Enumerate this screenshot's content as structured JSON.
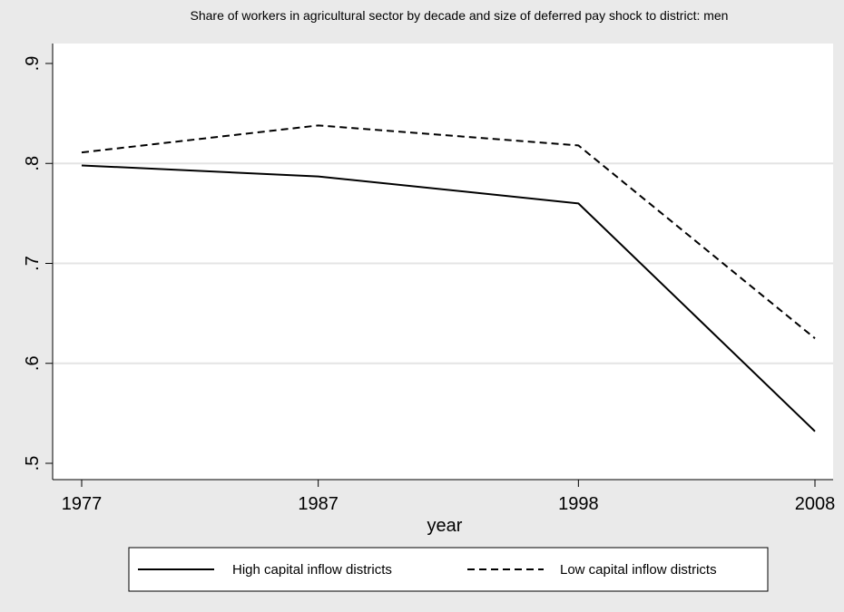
{
  "chart_data": {
    "type": "line",
    "title": "Share of workers in agricultural sector by decade and size of deferred pay shock to district: men",
    "xlabel": "year",
    "ylabel": "",
    "x": [
      1977,
      1987,
      1998,
      2008
    ],
    "x_tick_labels": [
      "1977",
      "1987",
      "1998",
      "2008"
    ],
    "ylim": [
      0.5,
      0.9
    ],
    "y_ticks": [
      0.5,
      0.6,
      0.7,
      0.8,
      0.9
    ],
    "y_tick_labels": [
      ".5",
      ".6",
      ".7",
      ".8",
      ".9"
    ],
    "grid": "horizontal",
    "legend_position": "bottom",
    "series": [
      {
        "name": "High capital inflow districts",
        "style": "solid",
        "color": "#000000",
        "values": [
          0.798,
          0.787,
          0.76,
          0.532
        ]
      },
      {
        "name": "Low capital inflow districts",
        "style": "dashed",
        "color": "#000000",
        "values": [
          0.811,
          0.838,
          0.818,
          0.625
        ]
      }
    ]
  }
}
